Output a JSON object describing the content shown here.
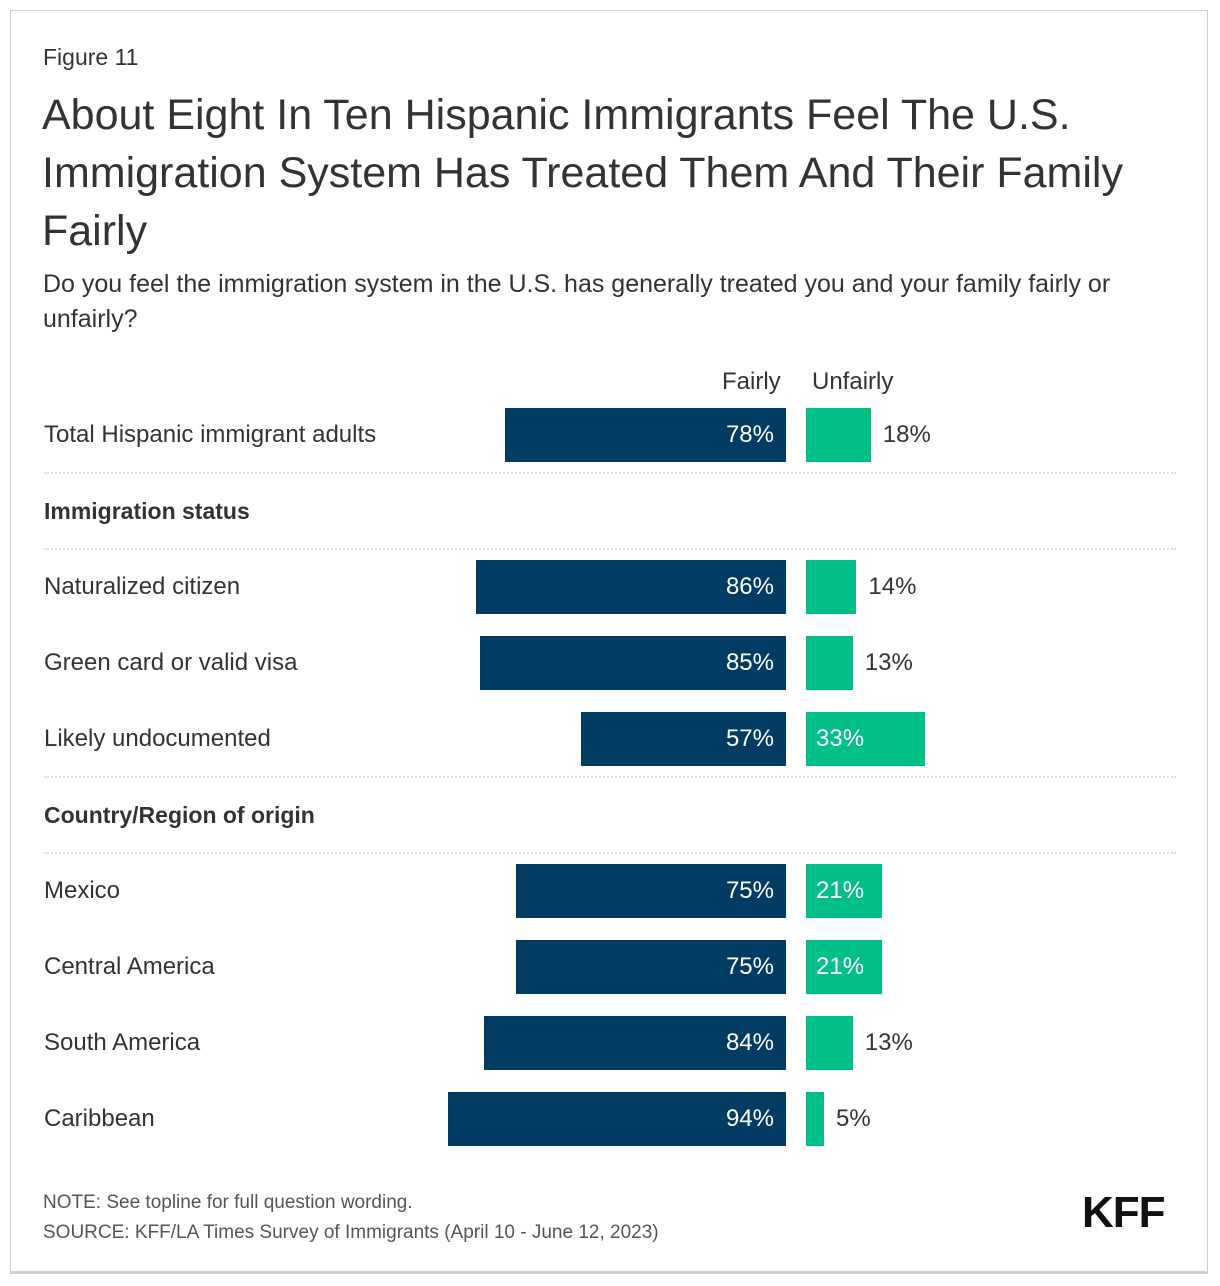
{
  "figure_label": "Figure 11",
  "title": "About Eight In Ten Hispanic Immigrants Feel The U.S. Immigration System Has Treated Them And Their Family Fairly",
  "subtitle": "Do you feel the immigration system in the U.S. has generally treated you and your family fairly or unfairly?",
  "note": "NOTE: See topline for full question wording.",
  "source": "SOURCE: KFF/LA Times Survey of Immigrants (April 10 - June 12, 2023)",
  "logo": "KFF",
  "colors": {
    "fairly": "#033c63",
    "unfairly": "#00bf89"
  },
  "chart_data": {
    "type": "bar",
    "orientation": "horizontal-diverging",
    "title": "About Eight In Ten Hispanic Immigrants Feel The U.S. Immigration System Has Treated Them And Their Family Fairly",
    "legend": [
      "Fairly",
      "Unfairly"
    ],
    "legend_placement": "top",
    "unit": "%",
    "rows": [
      {
        "kind": "data",
        "label": "Total Hispanic immigrant adults",
        "fairly": 78,
        "unfairly": 18
      },
      {
        "kind": "header",
        "label": "Immigration status"
      },
      {
        "kind": "data",
        "label": "Naturalized citizen",
        "fairly": 86,
        "unfairly": 14
      },
      {
        "kind": "data",
        "label": "Green card or valid visa",
        "fairly": 85,
        "unfairly": 13
      },
      {
        "kind": "data",
        "label": "Likely undocumented",
        "fairly": 57,
        "unfairly": 33
      },
      {
        "kind": "header",
        "label": "Country/Region of origin"
      },
      {
        "kind": "data",
        "label": "Mexico",
        "fairly": 75,
        "unfairly": 21
      },
      {
        "kind": "data",
        "label": "Central America",
        "fairly": 75,
        "unfairly": 21
      },
      {
        "kind": "data",
        "label": "South America",
        "fairly": 84,
        "unfairly": 13
      },
      {
        "kind": "data",
        "label": "Caribbean",
        "fairly": 94,
        "unfairly": 5
      }
    ]
  }
}
